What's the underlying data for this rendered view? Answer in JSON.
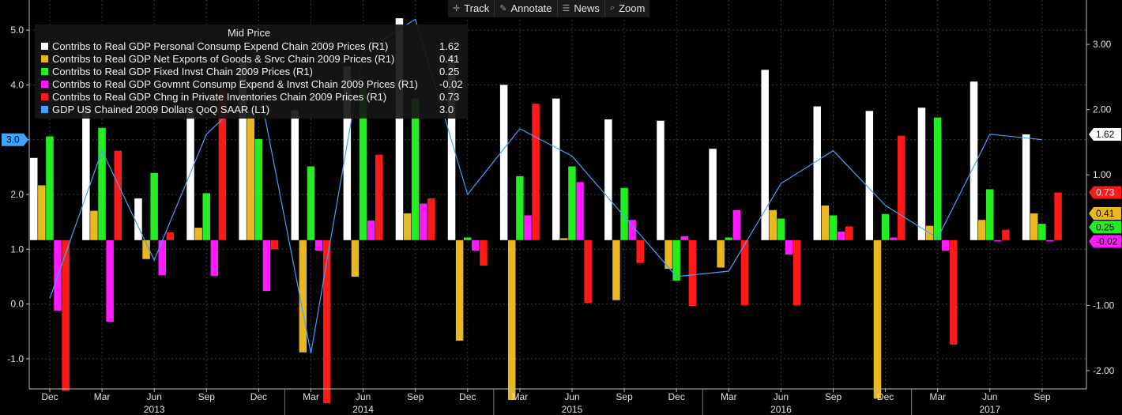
{
  "toolbar": {
    "track": "Track",
    "annotate": "Annotate",
    "news": "News",
    "zoom": "Zoom"
  },
  "legend": {
    "title": "Mid Price"
  },
  "chart_data": {
    "type": "bar",
    "categories": [
      "Dec 2012",
      "Mar 2013",
      "Jun 2013",
      "Sep 2013",
      "Dec 2013",
      "Mar 2014",
      "Jun 2014",
      "Sep 2014",
      "Dec 2014",
      "Mar 2015",
      "Jun 2015",
      "Sep 2015",
      "Dec 2015",
      "Mar 2016",
      "Jun 2016",
      "Sep 2016",
      "Dec 2016",
      "Mar 2017",
      "Jun 2017",
      "Sep 2017"
    ],
    "x_tick_labels": [
      "Dec",
      "Mar",
      "Jun",
      "Sep",
      "Dec",
      "Mar",
      "Jun",
      "Sep",
      "Dec",
      "Mar",
      "Jun",
      "Sep",
      "Dec",
      "Mar",
      "Jun",
      "Sep",
      "Dec",
      "Mar",
      "Jun",
      "Sep"
    ],
    "year_labels": [
      "2013",
      "2014",
      "2015",
      "2016",
      "2017"
    ],
    "left_axis": {
      "ylim": [
        -1.55,
        5.55
      ],
      "ticks": [
        -1.0,
        0.0,
        1.0,
        2.0,
        3.0,
        4.0,
        5.0
      ],
      "tick_labels": [
        "-1.0",
        "0.0",
        "1.0",
        "2.0",
        "3.0",
        "4.0",
        "5.0"
      ]
    },
    "right_axis": {
      "ylim": [
        -2.28,
        3.68
      ],
      "ticks": [
        -2.0,
        -1.0,
        1.0,
        2.0,
        3.0
      ],
      "tick_labels": [
        "-2.00",
        "-1.00",
        "1.00",
        "2.00",
        "3.00"
      ]
    },
    "series": [
      {
        "name": "Contribs to Real GDP Personal Consump Expend Chain 2009 Prices  (R1)",
        "axis": "right",
        "color": "#ffffff",
        "last": "1.62",
        "values": [
          1.26,
          2.03,
          0.64,
          1.98,
          2.72,
          1.99,
          2.66,
          3.4,
          2.83,
          2.38,
          2.17,
          1.85,
          1.83,
          1.4,
          2.61,
          2.05,
          1.98,
          2.03,
          2.43,
          1.62
        ]
      },
      {
        "name": "Contribs to Real GDP Net Exports of Goods & Srvc Chain 2009 Prices  (R1)",
        "axis": "right",
        "color": "#e8b820",
        "last": "0.41",
        "values": [
          0.84,
          0.45,
          -0.29,
          0.19,
          1.99,
          -1.72,
          -0.56,
          0.41,
          -1.54,
          -2.45,
          0.03,
          -0.92,
          -0.44,
          -0.42,
          0.46,
          0.53,
          -2.43,
          0.22,
          0.31,
          0.41
        ]
      },
      {
        "name": "Contribs to Real GDP Fixed Invst Chain 2009 Prices  (R1)",
        "axis": "right",
        "color": "#22ee22",
        "last": "0.25",
        "values": [
          1.59,
          1.72,
          1.03,
          0.72,
          1.55,
          1.13,
          2.34,
          2.17,
          0.04,
          0.98,
          1.13,
          0.8,
          -0.62,
          0.04,
          0.33,
          0.38,
          0.4,
          1.88,
          0.78,
          0.25
        ]
      },
      {
        "name": "Contribs to Real GDP Govmnt Consump Expend & Invst Chain 2009 Prices  (R1)",
        "axis": "right",
        "color": "#ff1aff",
        "last": "-0.02",
        "values": [
          -1.08,
          -1.25,
          -0.54,
          -0.55,
          -0.78,
          -0.16,
          0.3,
          0.56,
          -0.16,
          0.38,
          0.89,
          0.31,
          0.06,
          0.46,
          -0.22,
          0.13,
          0.04,
          -0.16,
          -0.02,
          -0.02
        ]
      },
      {
        "name": "Contribs to Real GDP Chng in Private Inventories Chain 2009 Prices  (R1)",
        "axis": "right",
        "color": "#ff1a1a",
        "last": "0.73",
        "values": [
          -2.31,
          1.37,
          0.12,
          2.31,
          -0.14,
          -2.5,
          1.31,
          0.64,
          -0.39,
          2.09,
          -0.96,
          -0.35,
          -1.01,
          -1.0,
          -1.0,
          0.21,
          1.6,
          -1.6,
          0.16,
          0.73
        ]
      }
    ],
    "line_series": {
      "name": "GDP US Chained 2009 Dollars QoQ SAAR  (L1)",
      "axis": "left",
      "color": "#3fa3ff",
      "last": "3.0",
      "values": [
        0.1,
        2.8,
        0.8,
        3.1,
        4.0,
        -0.9,
        4.6,
        5.2,
        2.0,
        3.2,
        2.7,
        1.6,
        0.5,
        0.6,
        2.2,
        2.8,
        1.8,
        1.2,
        3.1,
        3.0
      ]
    }
  }
}
